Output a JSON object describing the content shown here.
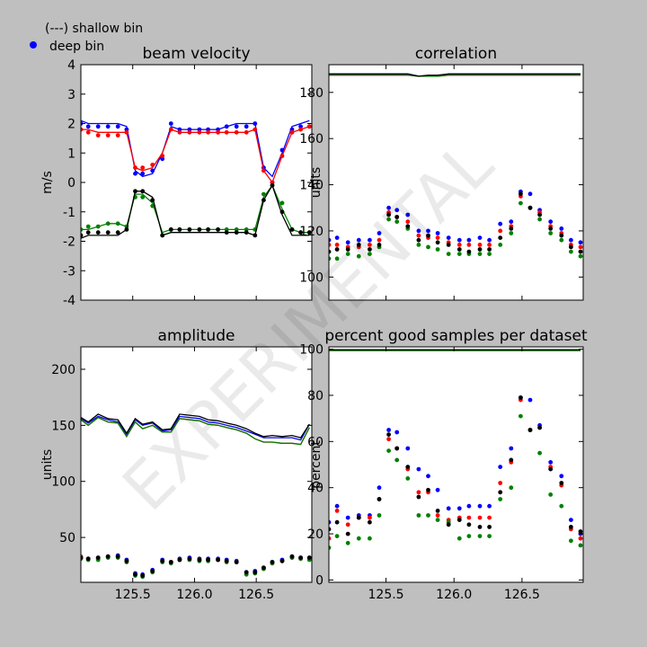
{
  "legend": {
    "shallow_label": "(---) shallow bin",
    "deep_label": "deep bin",
    "deep_marker_color": "#0000ff"
  },
  "watermark": "EXPERIMENTAL",
  "colors": {
    "beam1": "#0000ff",
    "beam2": "#ff0000",
    "beam3": "#008000",
    "beam4": "#000000"
  },
  "chart_data": [
    {
      "type": "line",
      "title": "beam velocity",
      "ylabel": "m/s",
      "xlim": [
        125.08,
        126.95
      ],
      "ylim": [
        -4,
        4
      ],
      "yticks": [
        -4,
        -3,
        -2,
        -1,
        0,
        1,
        2,
        3,
        4
      ],
      "xticks": [
        125.5,
        126.0,
        126.5
      ],
      "show_xticklabels": false,
      "x": [
        125.08,
        125.14,
        125.22,
        125.3,
        125.38,
        125.45,
        125.52,
        125.58,
        125.66,
        125.74,
        125.81,
        125.88,
        125.96,
        126.04,
        126.11,
        126.19,
        126.26,
        126.34,
        126.42,
        126.49,
        126.56,
        126.63,
        126.71,
        126.79,
        126.86,
        126.93
      ],
      "series": [
        {
          "color": "#0000ff",
          "line": [
            2.1,
            2.0,
            2.0,
            2.0,
            2.0,
            1.9,
            0.4,
            0.2,
            0.3,
            1.0,
            1.9,
            1.8,
            1.8,
            1.8,
            1.8,
            1.8,
            1.9,
            2.0,
            2.0,
            2.0,
            0.5,
            0.2,
            1.0,
            1.9,
            2.0,
            2.1
          ],
          "deep": [
            2.0,
            1.9,
            1.9,
            1.9,
            1.9,
            1.8,
            0.3,
            0.3,
            0.4,
            0.8,
            2.0,
            1.8,
            1.8,
            1.8,
            1.8,
            1.8,
            1.9,
            1.9,
            1.9,
            2.0,
            0.5,
            0.0,
            1.1,
            1.8,
            1.9,
            1.9
          ]
        },
        {
          "color": "#ff0000",
          "line": [
            1.8,
            1.8,
            1.7,
            1.7,
            1.7,
            1.7,
            0.5,
            0.4,
            0.5,
            1.0,
            1.8,
            1.7,
            1.7,
            1.7,
            1.7,
            1.7,
            1.7,
            1.7,
            1.7,
            1.8,
            0.4,
            0.0,
            0.9,
            1.7,
            1.8,
            1.9
          ],
          "deep": [
            1.8,
            1.7,
            1.6,
            1.6,
            1.6,
            1.7,
            0.5,
            0.5,
            0.6,
            0.9,
            1.8,
            1.7,
            1.7,
            1.7,
            1.7,
            1.7,
            1.7,
            1.7,
            1.7,
            1.8,
            0.4,
            0.0,
            0.9,
            1.7,
            1.8,
            1.9
          ]
        },
        {
          "color": "#008000",
          "line": [
            -1.6,
            -1.6,
            -1.5,
            -1.4,
            -1.4,
            -1.5,
            -0.4,
            -0.4,
            -0.7,
            -1.7,
            -1.6,
            -1.6,
            -1.6,
            -1.6,
            -1.6,
            -1.6,
            -1.6,
            -1.6,
            -1.6,
            -1.6,
            -0.5,
            -0.1,
            -0.9,
            -1.6,
            -1.7,
            -1.7
          ],
          "deep": [
            -1.6,
            -1.5,
            -1.5,
            -1.4,
            -1.4,
            -1.5,
            -0.5,
            -0.5,
            -0.8,
            -1.8,
            -1.6,
            -1.6,
            -1.6,
            -1.6,
            -1.6,
            -1.6,
            -1.6,
            -1.6,
            -1.6,
            -1.6,
            -0.4,
            -0.1,
            -0.7,
            -1.6,
            -1.7,
            -1.7
          ]
        },
        {
          "color": "#000000",
          "line": [
            -1.9,
            -1.8,
            -1.8,
            -1.8,
            -1.8,
            -1.6,
            -0.3,
            -0.3,
            -0.5,
            -1.8,
            -1.7,
            -1.7,
            -1.7,
            -1.7,
            -1.7,
            -1.7,
            -1.7,
            -1.7,
            -1.7,
            -1.8,
            -0.6,
            -0.1,
            -1.1,
            -1.8,
            -1.8,
            -1.8
          ],
          "deep": [
            -1.8,
            -1.7,
            -1.7,
            -1.7,
            -1.7,
            -1.6,
            -0.3,
            -0.3,
            -0.6,
            -1.8,
            -1.6,
            -1.6,
            -1.6,
            -1.6,
            -1.6,
            -1.6,
            -1.7,
            -1.7,
            -1.7,
            -1.8,
            -0.6,
            -0.1,
            -1.0,
            -1.6,
            -1.7,
            -1.7
          ]
        }
      ]
    },
    {
      "type": "line",
      "title": "correlation",
      "ylabel": "units",
      "xlim": [
        125.08,
        126.95
      ],
      "ylim": [
        90,
        192
      ],
      "yticks": [
        100,
        120,
        140,
        160,
        180
      ],
      "xticks": [
        125.5,
        126.0,
        126.5
      ],
      "show_xticklabels": false,
      "x": [
        125.08,
        125.14,
        125.22,
        125.3,
        125.38,
        125.45,
        125.52,
        125.58,
        125.66,
        125.74,
        125.81,
        125.88,
        125.96,
        126.04,
        126.11,
        126.19,
        126.26,
        126.34,
        126.42,
        126.49,
        126.56,
        126.63,
        126.71,
        126.79,
        126.86,
        126.93
      ],
      "series": [
        {
          "color": "#0000ff",
          "line": [
            188,
            188,
            188,
            188,
            188,
            188,
            188,
            188,
            188,
            187,
            187,
            187,
            188,
            188,
            188,
            188,
            188,
            188,
            188,
            188,
            188,
            188,
            188,
            188,
            188,
            188
          ],
          "deep": [
            116,
            117,
            115,
            116,
            116,
            119,
            130,
            129,
            127,
            120,
            120,
            119,
            117,
            116,
            116,
            117,
            116,
            123,
            124,
            137,
            136,
            129,
            124,
            121,
            116,
            115
          ]
        },
        {
          "color": "#ff0000",
          "line": [
            187.5,
            187.5,
            187.5,
            187.5,
            187.5,
            187.5,
            187.5,
            187.5,
            187.5,
            187,
            187,
            187,
            187.5,
            187.5,
            187.5,
            187.5,
            187.5,
            187.5,
            187.5,
            187.5,
            187.5,
            187.5,
            187.5,
            187.5,
            187.5,
            187.5
          ],
          "deep": [
            114,
            114,
            113,
            113,
            114,
            116,
            128,
            126,
            124,
            118,
            117,
            117,
            115,
            114,
            114,
            114,
            114,
            120,
            122,
            135,
            130,
            128,
            122,
            119,
            114,
            113
          ]
        },
        {
          "color": "#008000",
          "line": [
            187.5,
            187.5,
            187.5,
            187.5,
            187.5,
            187.5,
            187.5,
            187.5,
            187.5,
            187,
            187,
            187,
            187.5,
            187.5,
            187.5,
            187.5,
            187.5,
            187.5,
            187.5,
            187.5,
            187.5,
            187.5,
            187.5,
            187.5,
            187.5,
            187.5
          ],
          "deep": [
            108,
            108,
            110,
            109,
            110,
            113,
            125,
            124,
            121,
            114,
            113,
            112,
            110,
            110,
            110,
            110,
            110,
            114,
            119,
            132,
            130,
            125,
            119,
            116,
            111,
            109
          ]
        },
        {
          "color": "#000000",
          "line": [
            188,
            188,
            188,
            188,
            188,
            188,
            188,
            188,
            188,
            187,
            187.5,
            187.5,
            188,
            188,
            188,
            188,
            188,
            188,
            188,
            188,
            188,
            188,
            188,
            188,
            188,
            188
          ],
          "deep": [
            111,
            112,
            112,
            114,
            112,
            114,
            127,
            126,
            122,
            116,
            118,
            115,
            114,
            112,
            111,
            112,
            112,
            117,
            121,
            136,
            130,
            127,
            121,
            118,
            113,
            111
          ]
        }
      ]
    },
    {
      "type": "line",
      "title": "amplitude",
      "ylabel": "units",
      "xlim": [
        125.08,
        126.95
      ],
      "ylim": [
        10,
        220
      ],
      "yticks": [
        50,
        100,
        150,
        200
      ],
      "xticks": [
        125.5,
        126.0,
        126.5
      ],
      "show_xticklabels": true,
      "x": [
        125.08,
        125.14,
        125.22,
        125.3,
        125.38,
        125.45,
        125.52,
        125.58,
        125.66,
        125.74,
        125.81,
        125.88,
        125.96,
        126.04,
        126.11,
        126.19,
        126.26,
        126.34,
        126.42,
        126.49,
        126.56,
        126.63,
        126.71,
        126.79,
        126.86,
        126.93
      ],
      "series": [
        {
          "color": "#0000ff",
          "line": [
            156,
            152,
            158,
            155,
            153,
            142,
            155,
            150,
            152,
            145,
            146,
            158,
            157,
            156,
            153,
            152,
            150,
            148,
            145,
            142,
            139,
            139,
            139,
            139,
            137,
            151
          ],
          "deep": [
            32,
            31,
            31,
            33,
            34,
            30,
            18,
            17,
            21,
            30,
            28,
            31,
            32,
            31,
            31,
            31,
            30,
            29,
            19,
            20,
            23,
            28,
            30,
            33,
            32,
            32
          ]
        },
        {
          "color": "#ff0000",
          "line": [
            155,
            150,
            157,
            153,
            152,
            140,
            153,
            147,
            150,
            144,
            144,
            156,
            155,
            154,
            151,
            150,
            148,
            146,
            143,
            138,
            135,
            135,
            134,
            134,
            133,
            148
          ],
          "deep": [
            33,
            31,
            32,
            33,
            33,
            29,
            17,
            16,
            20,
            29,
            28,
            30,
            31,
            30,
            30,
            30,
            29,
            28,
            18,
            19,
            22,
            27,
            29,
            32,
            31,
            31
          ]
        },
        {
          "color": "#008000",
          "line": [
            155,
            150,
            157,
            153,
            152,
            140,
            153,
            147,
            150,
            144,
            144,
            156,
            155,
            154,
            151,
            150,
            148,
            146,
            143,
            138,
            135,
            135,
            134,
            134,
            133,
            148
          ],
          "deep": [
            31,
            30,
            30,
            32,
            32,
            28,
            16,
            15,
            19,
            28,
            27,
            30,
            30,
            29,
            29,
            30,
            28,
            28,
            17,
            18,
            22,
            27,
            29,
            32,
            31,
            30
          ]
        },
        {
          "color": "#000000",
          "line": [
            157,
            153,
            160,
            156,
            155,
            143,
            156,
            151,
            153,
            146,
            147,
            160,
            159,
            158,
            155,
            154,
            152,
            150,
            147,
            143,
            140,
            141,
            140,
            141,
            139,
            151
          ],
          "deep": [
            32,
            31,
            32,
            33,
            33,
            29,
            17,
            16,
            20,
            29,
            28,
            30,
            31,
            30,
            30,
            30,
            29,
            28,
            19,
            19,
            23,
            28,
            29,
            33,
            32,
            32
          ]
        }
      ]
    },
    {
      "type": "line",
      "title": "percent good samples per dataset",
      "ylabel": "percent",
      "xlim": [
        125.08,
        126.95
      ],
      "ylim": [
        -1,
        101
      ],
      "yticks": [
        0,
        20,
        40,
        60,
        80,
        100
      ],
      "xticks": [
        125.5,
        126.0,
        126.5
      ],
      "show_xticklabels": true,
      "x": [
        125.08,
        125.14,
        125.22,
        125.3,
        125.38,
        125.45,
        125.52,
        125.58,
        125.66,
        125.74,
        125.81,
        125.88,
        125.96,
        126.04,
        126.11,
        126.19,
        126.26,
        126.34,
        126.42,
        126.49,
        126.56,
        126.63,
        126.71,
        126.79,
        126.86,
        126.93
      ],
      "series": [
        {
          "color": "#0000ff",
          "line": [
            99.6,
            99.6,
            99.6,
            99.6,
            99.6,
            99.6,
            99.6,
            99.6,
            99.6,
            99.6,
            99.6,
            99.6,
            99.6,
            99.6,
            99.6,
            99.6,
            99.6,
            99.6,
            99.6,
            99.6,
            99.6,
            99.6,
            99.6,
            99.6,
            99.6,
            99.6
          ],
          "deep": [
            25,
            32,
            27,
            28,
            28,
            40,
            65,
            64,
            57,
            48,
            45,
            39,
            31,
            31,
            32,
            32,
            32,
            49,
            57,
            79,
            78,
            67,
            51,
            45,
            26,
            20
          ]
        },
        {
          "color": "#ff0000",
          "line": [
            99.4,
            99.4,
            99.4,
            99.4,
            99.4,
            99.4,
            99.4,
            99.4,
            99.4,
            99.4,
            99.4,
            99.4,
            99.4,
            99.4,
            99.4,
            99.4,
            99.4,
            99.4,
            99.4,
            99.4,
            99.4,
            99.4,
            99.4,
            99.4,
            99.4,
            99.4
          ],
          "deep": [
            18,
            30,
            24,
            27,
            27,
            35,
            61,
            57,
            48,
            38,
            38,
            28,
            26,
            27,
            27,
            27,
            27,
            42,
            51,
            78,
            65,
            66,
            49,
            41,
            22,
            18
          ]
        },
        {
          "color": "#008000",
          "line": [
            99.4,
            99.4,
            99.4,
            99.4,
            99.4,
            99.4,
            99.4,
            99.4,
            99.4,
            99.4,
            99.4,
            99.4,
            99.4,
            99.4,
            99.4,
            99.4,
            99.4,
            99.4,
            99.4,
            99.4,
            99.4,
            99.4,
            99.4,
            99.4,
            99.4,
            99.4
          ],
          "deep": [
            14,
            19,
            16,
            18,
            18,
            28,
            56,
            52,
            44,
            28,
            28,
            26,
            25,
            18,
            19,
            19,
            19,
            35,
            40,
            71,
            65,
            55,
            37,
            32,
            17,
            15
          ]
        },
        {
          "color": "#000000",
          "line": [
            99.8,
            99.8,
            99.8,
            99.8,
            99.8,
            99.8,
            99.8,
            99.8,
            99.8,
            99.8,
            99.8,
            99.8,
            99.8,
            99.8,
            99.8,
            99.8,
            99.8,
            99.8,
            99.8,
            99.8,
            99.8,
            99.8,
            99.8,
            99.8,
            99.8,
            99.8
          ],
          "deep": [
            22,
            25,
            20,
            27,
            25,
            35,
            63,
            57,
            49,
            36,
            39,
            30,
            24,
            26,
            24,
            23,
            23,
            38,
            52,
            79,
            65,
            66,
            48,
            42,
            23,
            21
          ]
        }
      ]
    }
  ]
}
